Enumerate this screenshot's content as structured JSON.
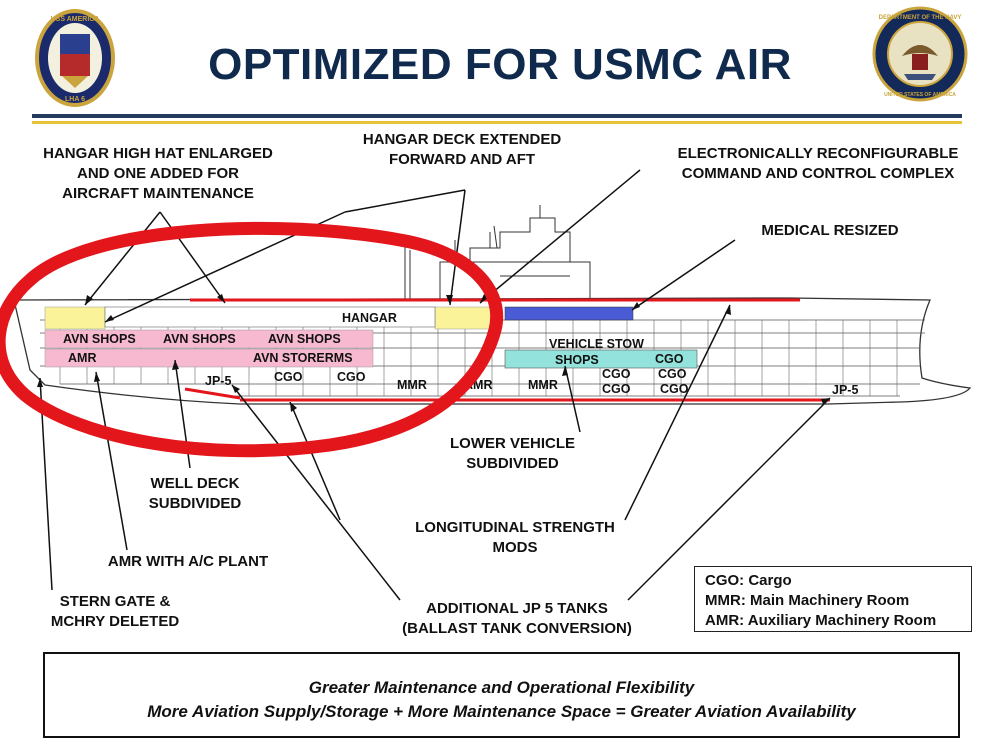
{
  "title": "OPTIMIZED FOR USMC AIR",
  "seals": {
    "left_text": "USS AMERICA",
    "left_hull": "LHA 6",
    "right_text": "DEPARTMENT OF THE NAVY",
    "right_sub": "UNITED STATES OF AMERICA"
  },
  "callouts": {
    "high_hat": [
      "HANGAR HIGH HAT ENLARGED",
      "AND ONE ADDED FOR",
      "AIRCRAFT MAINTENANCE"
    ],
    "hangar_extended": [
      "HANGAR DECK EXTENDED",
      "FORWARD AND AFT"
    ],
    "c2_complex": [
      "ELECTRONICALLY RECONFIGURABLE",
      "COMMAND AND CONTROL COMPLEX"
    ],
    "medical": [
      "MEDICAL RESIZED"
    ],
    "lower_vehicle": [
      "LOWER VEHICLE",
      "SUBDIVIDED"
    ],
    "well_deck": [
      "WELL DECK",
      "SUBDIVIDED"
    ],
    "longitudinal": [
      "LONGITUDINAL STRENGTH",
      "MODS"
    ],
    "amr_ac": [
      "AMR WITH A/C PLANT"
    ],
    "stern_gate": [
      "STERN GATE &",
      "MCHRY DELETED"
    ],
    "jp5_tanks": [
      "ADDITIONAL JP 5 TANKS",
      "(BALLAST TANK CONVERSION)"
    ]
  },
  "ship_labels": {
    "hangar": "HANGAR",
    "avn_shops_1": "AVN SHOPS",
    "avn_shops_2": "AVN SHOPS",
    "avn_shops_3": "AVN SHOPS",
    "amr_aft": "AMR",
    "avn_storerms": "AVN STORERMS",
    "vehicle_stow": "VEHICLE STOW",
    "shops": "SHOPS",
    "cgo_1": "CGO",
    "cgo_2": "CGO",
    "cgo_3": "CGO",
    "cgo_4": "CGO",
    "cgo_5": "CGO",
    "cgo_6": "CGO",
    "cgo_7": "CGO",
    "jp5_aft": "JP-5",
    "jp5_fwd": "JP-5",
    "mmr_1": "MMR",
    "mmr_2": "MMR",
    "amr_mid": "AMR"
  },
  "legend": [
    "CGO: Cargo",
    "MMR: Main Machinery Room",
    "AMR: Auxiliary Machinery Room"
  ],
  "footer": {
    "line1": "Greater Maintenance and Operational Flexibility",
    "line2": "More Aviation Supply/Storage + More Maintenance Space = Greater Aviation Availability"
  },
  "colors": {
    "title": "#0f2a4d",
    "rule_blue": "#24395e",
    "rule_gold": "#e6c43a",
    "highlight_circle": "#e3161c",
    "yellow_zone": "#fbf39a",
    "pink_zone": "#f7b9cf",
    "teal_zone": "#93e3dc",
    "blue_zone": "#4a5bd6",
    "red_line": "#e3161c"
  },
  "icons": [
    "left-command-seal-icon",
    "navy-seal-icon"
  ]
}
